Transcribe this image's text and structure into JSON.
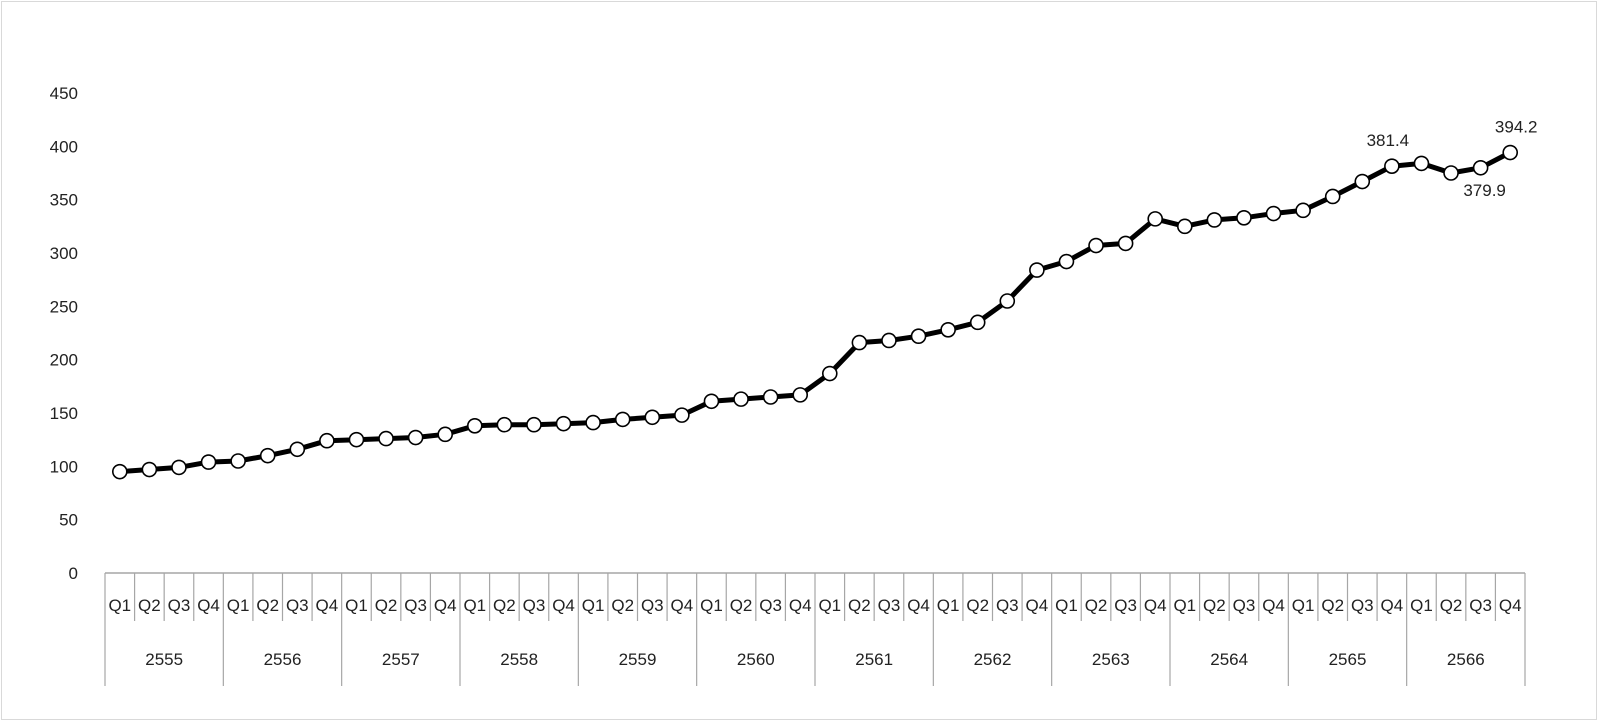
{
  "chart_data": {
    "type": "line",
    "title": "",
    "xlabel": "",
    "ylabel": "",
    "ylim": [
      0,
      450
    ],
    "y_ticks": [
      "0",
      "50",
      "100",
      "150",
      "200",
      "250",
      "300",
      "350",
      "400",
      "450"
    ],
    "grid": false,
    "legend": "none",
    "quarters": [
      "Q1",
      "Q2",
      "Q3",
      "Q4"
    ],
    "years": [
      "2555",
      "2556",
      "2557",
      "2558",
      "2559",
      "2560",
      "2561",
      "2562",
      "2563",
      "2564",
      "2565",
      "2566"
    ],
    "series": [
      {
        "values": [
          95,
          97,
          99,
          104,
          105,
          110,
          116,
          124,
          125,
          126,
          127,
          130,
          138,
          139,
          139,
          140,
          141,
          144,
          146,
          148,
          161,
          163,
          165,
          167,
          187,
          216,
          218,
          222,
          228,
          235,
          255,
          284,
          292,
          307,
          309,
          332,
          325,
          331,
          333,
          337,
          340,
          353,
          367,
          381.4,
          384,
          375,
          379.9,
          394.2
        ]
      }
    ],
    "data_labels": [
      {
        "index": 43,
        "text": "381.4",
        "position": "above"
      },
      {
        "index": 46,
        "text": "379.9",
        "position": "below"
      },
      {
        "index": 47,
        "text": "394.2",
        "position": "above"
      }
    ],
    "colors": {
      "line": "#000000",
      "marker_fill": "#ffffff",
      "marker_stroke": "#000000",
      "axis": "#a6a6a6"
    }
  }
}
